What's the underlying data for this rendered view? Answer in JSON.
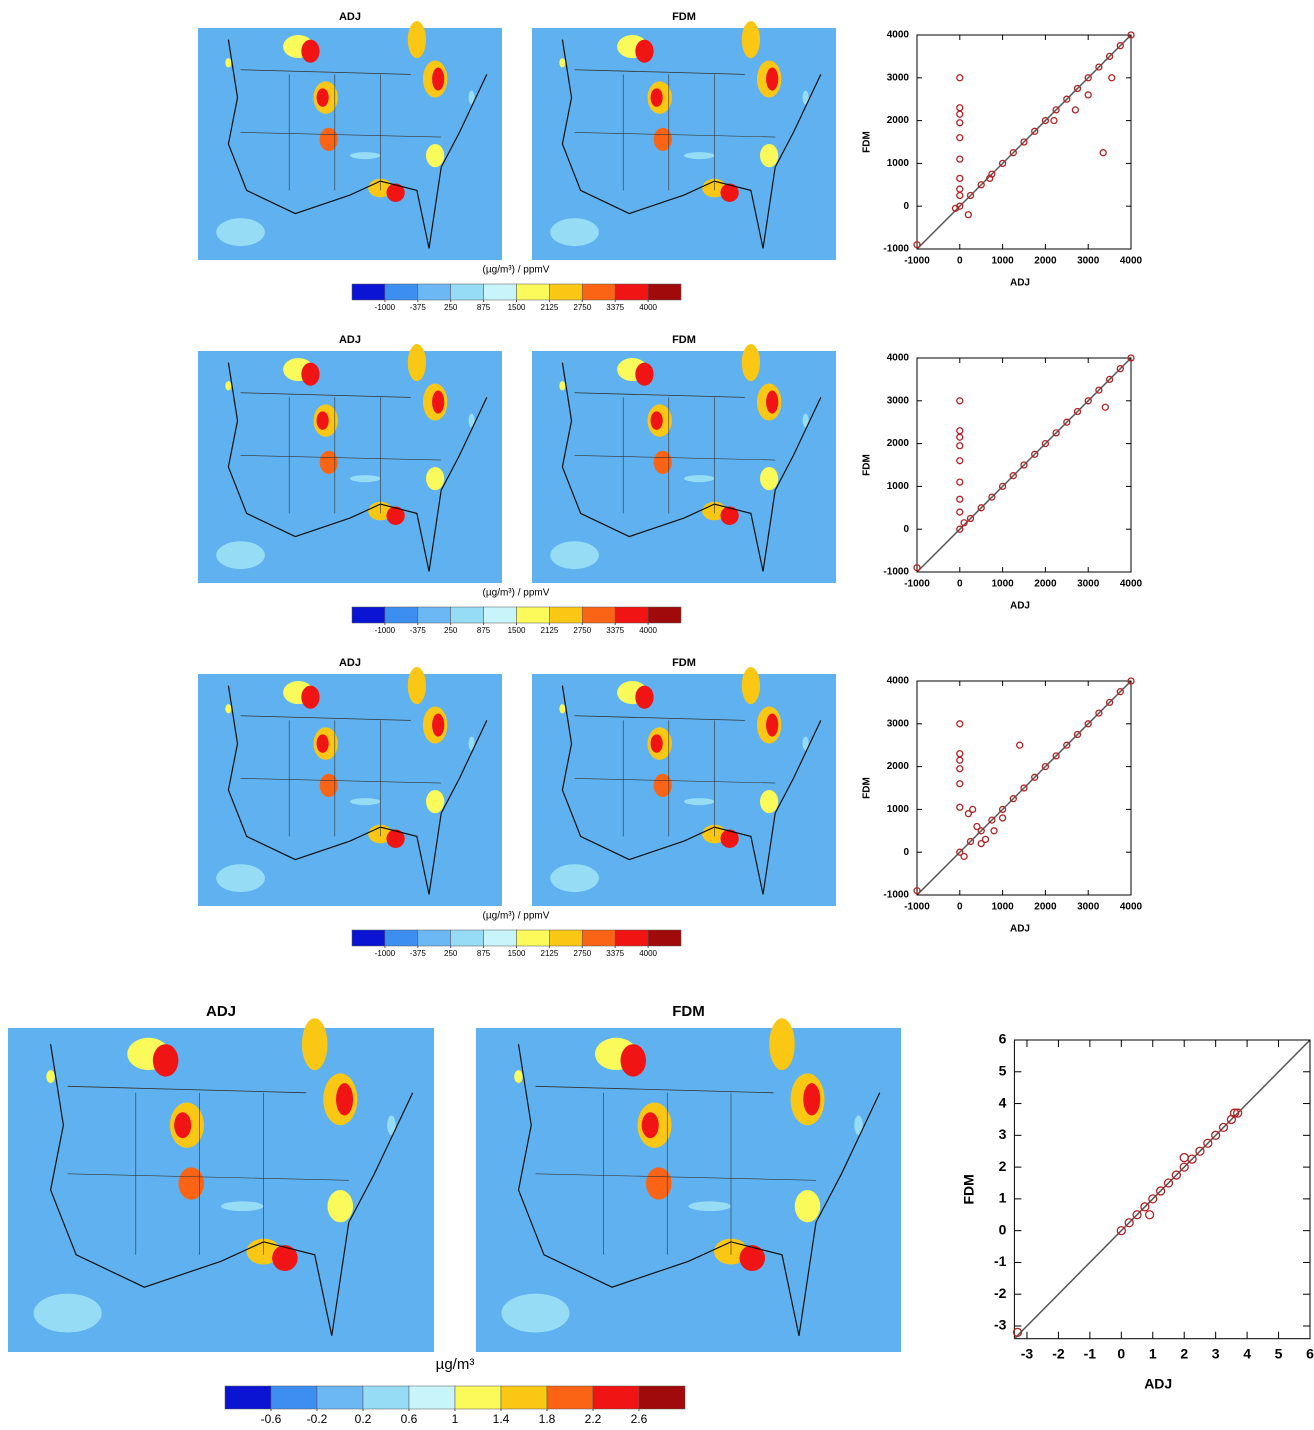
{
  "maps": [
    {
      "titles": [
        "ADJ",
        "FDM"
      ],
      "colorbar": {
        "label": "(µg/m³) / ppmV",
        "colors": [
          "#0a14d2",
          "#3c8ef0",
          "#6cb8f5",
          "#96dcf5",
          "#c8f5fa",
          "#fafa5a",
          "#fac814",
          "#fa6414",
          "#f01414",
          "#a00a0a"
        ],
        "lim": [
          -1625,
          4625
        ],
        "ticks": [
          -1000,
          -375,
          250,
          875,
          1500,
          2125,
          2750,
          3375,
          4000
        ]
      }
    },
    {
      "titles": [
        "ADJ",
        "FDM"
      ],
      "colorbar": {
        "label": "(µg/m³) / ppmV",
        "colors": [
          "#0a14d2",
          "#3c8ef0",
          "#6cb8f5",
          "#96dcf5",
          "#c8f5fa",
          "#fafa5a",
          "#fac814",
          "#fa6414",
          "#f01414",
          "#a00a0a"
        ],
        "lim": [
          -1625,
          4625
        ],
        "ticks": [
          -1000,
          -375,
          250,
          875,
          1500,
          2125,
          2750,
          3375,
          4000
        ]
      }
    },
    {
      "titles": [
        "ADJ",
        "FDM"
      ],
      "colorbar": {
        "label": "(µg/m³) / ppmV",
        "colors": [
          "#0a14d2",
          "#3c8ef0",
          "#6cb8f5",
          "#96dcf5",
          "#c8f5fa",
          "#fafa5a",
          "#fac814",
          "#fa6414",
          "#f01414",
          "#a00a0a"
        ],
        "lim": [
          -1625,
          4625
        ],
        "ticks": [
          -1000,
          -375,
          250,
          875,
          1500,
          2125,
          2750,
          3375,
          4000
        ]
      }
    },
    {
      "titles": [
        "ADJ",
        "FDM"
      ],
      "colorbar": {
        "label": "µg/m³",
        "colors": [
          "#0a14d2",
          "#3c8ef0",
          "#6cb8f5",
          "#96dcf5",
          "#c8f5fa",
          "#fafa5a",
          "#fac814",
          "#fa6414",
          "#f01414",
          "#a00a0a"
        ],
        "lim": [
          -1,
          3
        ],
        "ticks": [
          -0.6,
          -0.2,
          0.2,
          0.6,
          1,
          1.4,
          1.8,
          2.2,
          2.6
        ]
      }
    }
  ],
  "chart_data": [
    {
      "type": "scatter",
      "xlabel": "ADJ",
      "ylabel": "FDM",
      "xlim": [
        -1000,
        4000
      ],
      "ylim": [
        -1000,
        4000
      ],
      "xticks": [
        -1000,
        0,
        1000,
        2000,
        3000,
        4000
      ],
      "yticks": [
        -1000,
        0,
        1000,
        2000,
        3000,
        4000
      ],
      "series": [
        {
          "color": "#b22222",
          "x": [
            0,
            250,
            500,
            750,
            1000,
            1250,
            1500,
            1750,
            2000,
            2250,
            2500,
            2750,
            3000,
            3250,
            3500,
            3750,
            4000,
            0,
            0,
            0,
            0,
            0,
            0,
            0,
            0,
            0,
            3350,
            3550,
            2700,
            3000,
            2200,
            700,
            200,
            -100,
            -1000
          ],
          "values": [
            0,
            250,
            500,
            750,
            1000,
            1250,
            1500,
            1750,
            2000,
            2250,
            2500,
            2750,
            3000,
            3250,
            3500,
            3750,
            4000,
            3000,
            2300,
            2150,
            1950,
            1600,
            1100,
            650,
            400,
            250,
            1250,
            3000,
            2250,
            2600,
            2000,
            650,
            -200,
            -50,
            -900
          ]
        }
      ]
    },
    {
      "type": "scatter",
      "xlabel": "ADJ",
      "ylabel": "FDM",
      "xlim": [
        -1000,
        4000
      ],
      "ylim": [
        -1000,
        4000
      ],
      "xticks": [
        -1000,
        0,
        1000,
        2000,
        3000,
        4000
      ],
      "yticks": [
        -1000,
        0,
        1000,
        2000,
        3000,
        4000
      ],
      "series": [
        {
          "color": "#b22222",
          "x": [
            0,
            250,
            500,
            750,
            1000,
            1250,
            1500,
            1750,
            2000,
            2250,
            2500,
            2750,
            3000,
            3250,
            3500,
            3750,
            4000,
            0,
            0,
            0,
            0,
            0,
            0,
            0,
            0,
            3400,
            100,
            -1000
          ],
          "values": [
            0,
            250,
            500,
            750,
            1000,
            1250,
            1500,
            1750,
            2000,
            2250,
            2500,
            2750,
            3000,
            3250,
            3500,
            3750,
            4000,
            3000,
            2300,
            2150,
            1950,
            1600,
            1100,
            700,
            400,
            2850,
            150,
            -900
          ]
        }
      ]
    },
    {
      "type": "scatter",
      "xlabel": "ADJ",
      "ylabel": "FDM",
      "xlim": [
        -1000,
        4000
      ],
      "ylim": [
        -1000,
        4000
      ],
      "xticks": [
        -1000,
        0,
        1000,
        2000,
        3000,
        4000
      ],
      "yticks": [
        -1000,
        0,
        1000,
        2000,
        3000,
        4000
      ],
      "series": [
        {
          "color": "#b22222",
          "x": [
            0,
            250,
            500,
            750,
            1000,
            1250,
            1500,
            1750,
            2000,
            2250,
            2500,
            2750,
            3000,
            3250,
            3500,
            3750,
            4000,
            1400,
            0,
            0,
            0,
            0,
            0,
            0,
            200,
            400,
            600,
            300,
            800,
            1000,
            100,
            500,
            -1000
          ],
          "values": [
            0,
            250,
            500,
            750,
            1000,
            1250,
            1500,
            1750,
            2000,
            2250,
            2500,
            2750,
            3000,
            3250,
            3500,
            3750,
            4000,
            2500,
            3000,
            2300,
            2150,
            1950,
            1600,
            1050,
            900,
            600,
            300,
            1000,
            500,
            800,
            -100,
            200,
            -900
          ]
        }
      ]
    },
    {
      "type": "scatter",
      "xlabel": "ADJ",
      "ylabel": "FDM",
      "xlim": [
        -3.4,
        6
      ],
      "ylim": [
        -3.4,
        6
      ],
      "xticks": [
        -3,
        -2,
        -1,
        0,
        1,
        2,
        3,
        4,
        5,
        6
      ],
      "yticks": [
        -3,
        -2,
        -1,
        0,
        1,
        2,
        3,
        4,
        5,
        6
      ],
      "series": [
        {
          "color": "#b22222",
          "x": [
            0,
            0.25,
            0.5,
            0.75,
            1,
            1.25,
            1.5,
            1.75,
            2,
            2.25,
            2.5,
            2.75,
            3,
            3.25,
            3.5,
            3.7,
            -3.3,
            0.9,
            2,
            3.6
          ],
          "values": [
            0,
            0.25,
            0.5,
            0.75,
            1,
            1.25,
            1.5,
            1.75,
            2,
            2.25,
            2.5,
            2.75,
            3,
            3.25,
            3.5,
            3.7,
            -3.2,
            0.5,
            2.3,
            3.7
          ]
        }
      ]
    }
  ]
}
